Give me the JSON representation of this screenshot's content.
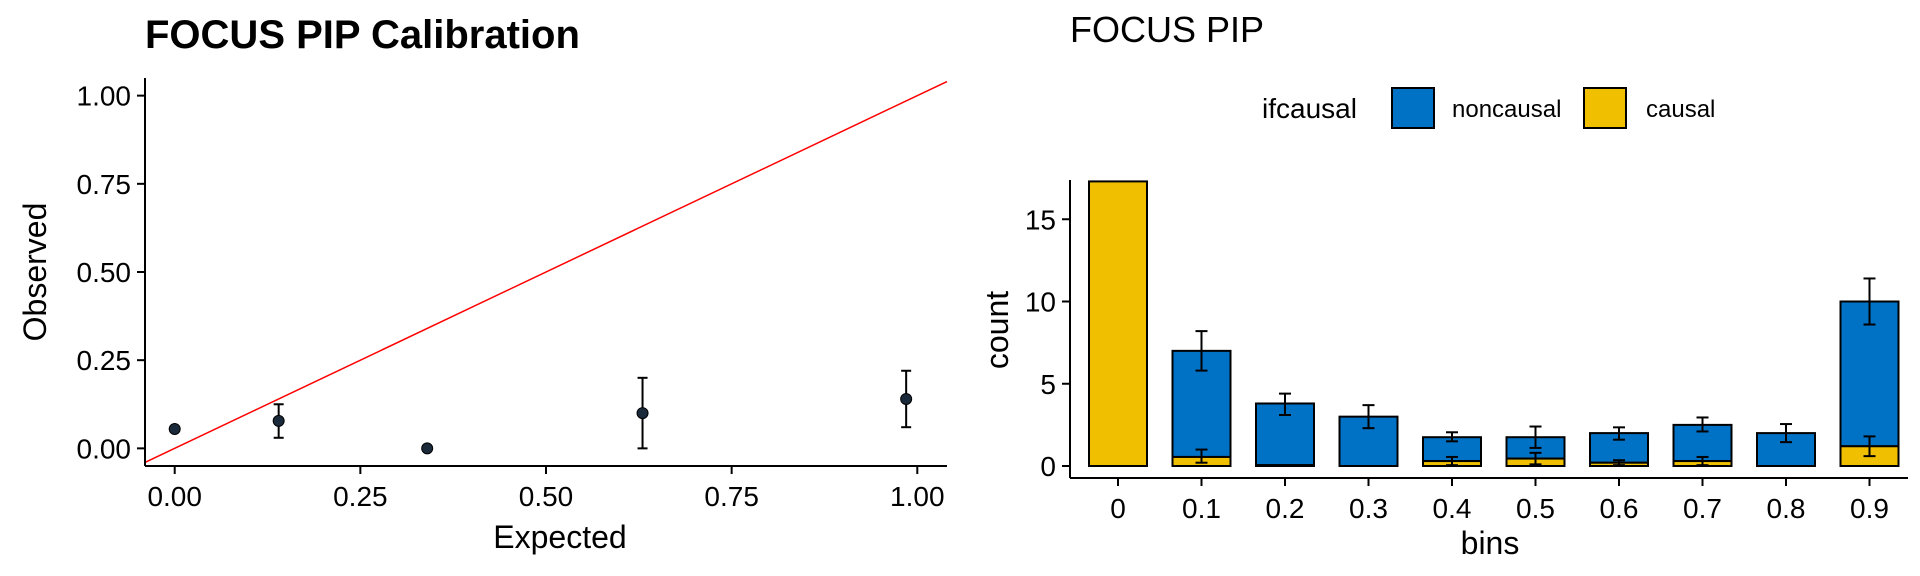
{
  "chart_data": [
    {
      "type": "scatter",
      "title": "FOCUS PIP Calibration",
      "xlabel": "Expected",
      "ylabel": "Observed",
      "xlim": [
        -0.04,
        1.04
      ],
      "ylim": [
        -0.05,
        1.05
      ],
      "xticks": [
        "0.00",
        "0.25",
        "0.50",
        "0.75",
        "1.00"
      ],
      "yticks": [
        "0.00",
        "0.25",
        "0.50",
        "0.75",
        "1.00"
      ],
      "reference_line": {
        "slope": 1,
        "intercept": 0,
        "color": "#ff0000"
      },
      "points": [
        {
          "x": 0.0,
          "y": 0.055,
          "low": null,
          "high": null
        },
        {
          "x": 0.14,
          "y": 0.078,
          "low": 0.03,
          "high": 0.125
        },
        {
          "x": 0.34,
          "y": 0.0,
          "low": null,
          "high": null
        },
        {
          "x": 0.63,
          "y": 0.1,
          "low": 0.0,
          "high": 0.2
        },
        {
          "x": 0.985,
          "y": 0.14,
          "low": 0.06,
          "high": 0.22
        }
      ],
      "point_color": "#1a2a3a",
      "grid": false
    },
    {
      "type": "bar",
      "stacked": true,
      "title": "FOCUS PIP",
      "xlabel": "bins",
      "ylabel": "count",
      "ylim": [
        0,
        17.3
      ],
      "yticks": [
        "0",
        "5",
        "10",
        "15"
      ],
      "legend": {
        "title": "ifcausal",
        "placement": "top",
        "entries": [
          {
            "name": "noncausal",
            "color": "#0072C6"
          },
          {
            "name": "causal",
            "color": "#F0C000"
          }
        ]
      },
      "categories": [
        "0",
        "0.1",
        "0.2",
        "0.3",
        "0.4",
        "0.5",
        "0.6",
        "0.7",
        "0.8",
        "0.9"
      ],
      "series": [
        {
          "name": "causal",
          "values": [
            17.3,
            0.55,
            0.05,
            0.0,
            0.3,
            0.45,
            0.2,
            0.3,
            0.0,
            1.2
          ]
        },
        {
          "name": "noncausal",
          "values": [
            0.0,
            6.45,
            3.75,
            3.0,
            1.45,
            1.3,
            1.8,
            2.2,
            2.0,
            8.8
          ]
        }
      ],
      "errorbars": {
        "total": [
          null,
          {
            "low": 5.8,
            "high": 8.2
          },
          {
            "low": 3.1,
            "high": 4.4
          },
          {
            "low": 2.3,
            "high": 3.7
          },
          {
            "low": 1.5,
            "high": 2.05
          },
          {
            "low": 1.1,
            "high": 2.4
          },
          {
            "low": 1.6,
            "high": 2.35
          },
          {
            "low": 2.1,
            "high": 2.95
          },
          {
            "low": 1.45,
            "high": 2.55
          },
          {
            "low": 8.6,
            "high": 11.4
          }
        ],
        "causal": [
          null,
          {
            "low": 0.2,
            "high": 1.0
          },
          null,
          null,
          {
            "low": 0.05,
            "high": 0.55
          },
          {
            "low": 0.1,
            "high": 0.8
          },
          {
            "low": 0.05,
            "high": 0.35
          },
          {
            "low": 0.05,
            "high": 0.55
          },
          null,
          {
            "low": 0.6,
            "high": 1.8
          }
        ]
      },
      "grid": false
    }
  ]
}
